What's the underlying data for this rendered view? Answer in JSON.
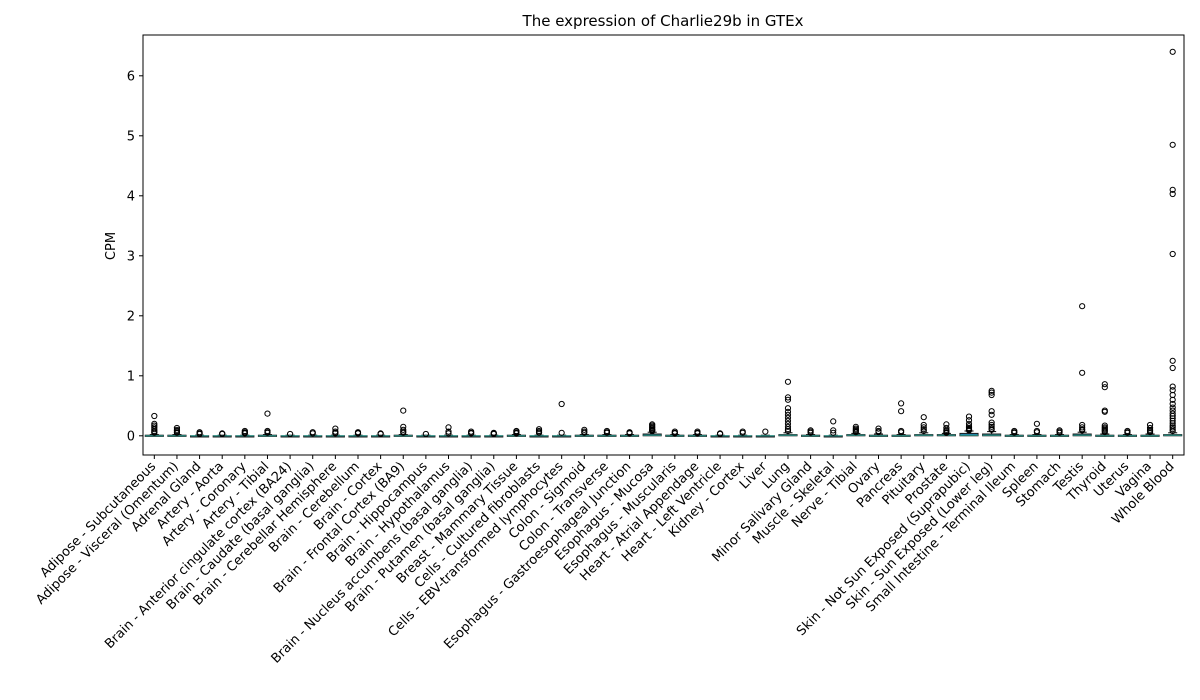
{
  "chart_data": {
    "type": "box",
    "title": "The expression of Charlie29b in GTEx",
    "xlabel": "",
    "ylabel": "CPM",
    "ylim": [
      -0.32,
      6.68
    ],
    "yticks": [
      0,
      1,
      2,
      3,
      4,
      5,
      6
    ],
    "grid": false,
    "legend": "none",
    "box_color": "#1f77b4",
    "median_color": "#2a9d8f",
    "categories": [
      "Adipose - Subcutaneous",
      "Adipose - Visceral (Omentum)",
      "Adrenal Gland",
      "Artery - Aorta",
      "Artery - Coronary",
      "Artery - Tibial",
      "Brain - Anterior cingulate cortex (BA24)",
      "Brain - Caudate (basal ganglia)",
      "Brain - Cerebellar Hemisphere",
      "Brain - Cerebellum",
      "Brain - Cortex",
      "Brain - Frontal Cortex (BA9)",
      "Brain - Hippocampus",
      "Brain - Hypothalamus",
      "Brain - Nucleus accumbens (basal ganglia)",
      "Brain - Putamen (basal ganglia)",
      "Breast - Mammary Tissue",
      "Cells - Cultured fibroblasts",
      "Cells - EBV-transformed lymphocytes",
      "Colon - Sigmoid",
      "Colon - Transverse",
      "Esophagus - Gastroesophageal Junction",
      "Esophagus - Mucosa",
      "Esophagus - Muscularis",
      "Heart - Atrial Appendage",
      "Heart - Left Ventricle",
      "Kidney - Cortex",
      "Liver",
      "Lung",
      "Minor Salivary Gland",
      "Muscle - Skeletal",
      "Nerve - Tibial",
      "Ovary",
      "Pancreas",
      "Pituitary",
      "Prostate",
      "Skin - Not Sun Exposed (Suprapubic)",
      "Skin - Sun Exposed (Lower leg)",
      "Small Intestine - Terminal Ileum",
      "Spleen",
      "Stomach",
      "Testis",
      "Thyroid",
      "Uterus",
      "Vagina",
      "Whole Blood"
    ],
    "boxes": [
      {
        "q1": 0,
        "median": 0,
        "q3": 0.01,
        "whislo": 0,
        "whishi": 0.02
      },
      {
        "q1": 0,
        "median": 0,
        "q3": 0.01,
        "whislo": 0,
        "whishi": 0.02
      },
      {
        "q1": 0,
        "median": 0,
        "q3": 0,
        "whislo": 0,
        "whishi": 0.01
      },
      {
        "q1": 0,
        "median": 0,
        "q3": 0,
        "whislo": 0,
        "whishi": 0.01
      },
      {
        "q1": 0,
        "median": 0,
        "q3": 0,
        "whislo": 0,
        "whishi": 0.01
      },
      {
        "q1": 0,
        "median": 0,
        "q3": 0.01,
        "whislo": 0,
        "whishi": 0.02
      },
      {
        "q1": 0,
        "median": 0,
        "q3": 0,
        "whislo": 0,
        "whishi": 0.01
      },
      {
        "q1": 0,
        "median": 0,
        "q3": 0,
        "whislo": 0,
        "whishi": 0.01
      },
      {
        "q1": 0,
        "median": 0,
        "q3": 0,
        "whislo": 0,
        "whishi": 0.01
      },
      {
        "q1": 0,
        "median": 0,
        "q3": 0,
        "whislo": 0,
        "whishi": 0.01
      },
      {
        "q1": 0,
        "median": 0,
        "q3": 0,
        "whislo": 0,
        "whishi": 0.01
      },
      {
        "q1": 0,
        "median": 0,
        "q3": 0.01,
        "whislo": 0,
        "whishi": 0.02
      },
      {
        "q1": 0,
        "median": 0,
        "q3": 0,
        "whislo": 0,
        "whishi": 0.01
      },
      {
        "q1": 0,
        "median": 0,
        "q3": 0,
        "whislo": 0,
        "whishi": 0.01
      },
      {
        "q1": 0,
        "median": 0,
        "q3": 0,
        "whislo": 0,
        "whishi": 0.01
      },
      {
        "q1": 0,
        "median": 0,
        "q3": 0,
        "whislo": 0,
        "whishi": 0.01
      },
      {
        "q1": 0,
        "median": 0,
        "q3": 0.01,
        "whislo": 0,
        "whishi": 0.02
      },
      {
        "q1": 0,
        "median": 0,
        "q3": 0,
        "whislo": 0,
        "whishi": 0.01
      },
      {
        "q1": 0,
        "median": 0,
        "q3": 0,
        "whislo": 0,
        "whishi": 0.01
      },
      {
        "q1": 0,
        "median": 0,
        "q3": 0.01,
        "whislo": 0,
        "whishi": 0.02
      },
      {
        "q1": 0,
        "median": 0,
        "q3": 0.01,
        "whislo": 0,
        "whishi": 0.02
      },
      {
        "q1": 0,
        "median": 0,
        "q3": 0.01,
        "whislo": 0,
        "whishi": 0.02
      },
      {
        "q1": 0,
        "median": 0.01,
        "q3": 0.03,
        "whislo": 0,
        "whishi": 0.06
      },
      {
        "q1": 0,
        "median": 0,
        "q3": 0.01,
        "whislo": 0,
        "whishi": 0.02
      },
      {
        "q1": 0,
        "median": 0,
        "q3": 0.01,
        "whislo": 0,
        "whishi": 0.02
      },
      {
        "q1": 0,
        "median": 0,
        "q3": 0,
        "whislo": 0,
        "whishi": 0.01
      },
      {
        "q1": 0,
        "median": 0,
        "q3": 0,
        "whislo": 0,
        "whishi": 0.01
      },
      {
        "q1": 0,
        "median": 0,
        "q3": 0,
        "whislo": 0,
        "whishi": 0.01
      },
      {
        "q1": 0,
        "median": 0.01,
        "q3": 0.02,
        "whislo": 0,
        "whishi": 0.05
      },
      {
        "q1": 0,
        "median": 0,
        "q3": 0.01,
        "whislo": 0,
        "whishi": 0.02
      },
      {
        "q1": 0,
        "median": 0,
        "q3": 0,
        "whislo": 0,
        "whishi": 0.01
      },
      {
        "q1": 0,
        "median": 0.01,
        "q3": 0.02,
        "whislo": 0,
        "whishi": 0.04
      },
      {
        "q1": 0,
        "median": 0,
        "q3": 0.01,
        "whislo": 0,
        "whishi": 0.03
      },
      {
        "q1": 0,
        "median": 0,
        "q3": 0.01,
        "whislo": 0,
        "whishi": 0.02
      },
      {
        "q1": 0,
        "median": 0.01,
        "q3": 0.02,
        "whislo": 0,
        "whishi": 0.05
      },
      {
        "q1": 0,
        "median": 0.01,
        "q3": 0.02,
        "whislo": 0,
        "whishi": 0.04
      },
      {
        "q1": 0,
        "median": 0.01,
        "q3": 0.04,
        "whislo": 0,
        "whishi": 0.08
      },
      {
        "q1": 0,
        "median": 0.01,
        "q3": 0.03,
        "whislo": 0,
        "whishi": 0.07
      },
      {
        "q1": 0,
        "median": 0,
        "q3": 0.01,
        "whislo": 0,
        "whishi": 0.02
      },
      {
        "q1": 0,
        "median": 0,
        "q3": 0.01,
        "whislo": 0,
        "whishi": 0.02
      },
      {
        "q1": 0,
        "median": 0,
        "q3": 0.01,
        "whislo": 0,
        "whishi": 0.02
      },
      {
        "q1": 0,
        "median": 0.01,
        "q3": 0.03,
        "whislo": 0,
        "whishi": 0.06
      },
      {
        "q1": 0,
        "median": 0,
        "q3": 0.01,
        "whislo": 0,
        "whishi": 0.03
      },
      {
        "q1": 0,
        "median": 0,
        "q3": 0.01,
        "whislo": 0,
        "whishi": 0.02
      },
      {
        "q1": 0,
        "median": 0,
        "q3": 0.01,
        "whislo": 0,
        "whishi": 0.03
      },
      {
        "q1": 0,
        "median": 0.01,
        "q3": 0.02,
        "whislo": 0,
        "whishi": 0.05
      }
    ],
    "outliers": [
      [
        0.33,
        0.2,
        0.17,
        0.14,
        0.11,
        0.08,
        0.06,
        0.05
      ],
      [
        0.13,
        0.1,
        0.08,
        0.06,
        0.05
      ],
      [
        0.06,
        0.04,
        0.03
      ],
      [
        0.04,
        0.03
      ],
      [
        0.08,
        0.06,
        0.05,
        0.04
      ],
      [
        0.37,
        0.08,
        0.06,
        0.05
      ],
      [
        0.03
      ],
      [
        0.06,
        0.04
      ],
      [
        0.12,
        0.07,
        0.05,
        0.04
      ],
      [
        0.06,
        0.05,
        0.04
      ],
      [
        0.04,
        0.03
      ],
      [
        0.42,
        0.15,
        0.1,
        0.07,
        0.05
      ],
      [
        0.03
      ],
      [
        0.14,
        0.07,
        0.04
      ],
      [
        0.07,
        0.05,
        0.04
      ],
      [
        0.05,
        0.04,
        0.03
      ],
      [
        0.08,
        0.07,
        0.05,
        0.04
      ],
      [
        0.11,
        0.08,
        0.06,
        0.05
      ],
      [
        0.53,
        0.05
      ],
      [
        0.1,
        0.07,
        0.05
      ],
      [
        0.08,
        0.06,
        0.05
      ],
      [
        0.06,
        0.05,
        0.04
      ],
      [
        0.19,
        0.17,
        0.15,
        0.13,
        0.11,
        0.1,
        0.09,
        0.08
      ],
      [
        0.07,
        0.05,
        0.04
      ],
      [
        0.07,
        0.05,
        0.04
      ],
      [
        0.04,
        0.03
      ],
      [
        0.07,
        0.05
      ],
      [
        0.07
      ],
      [
        0.9,
        0.64,
        0.6,
        0.46,
        0.4,
        0.35,
        0.3,
        0.25,
        0.2,
        0.15,
        0.11,
        0.08
      ],
      [
        0.09,
        0.07,
        0.05
      ],
      [
        0.24,
        0.09,
        0.05
      ],
      [
        0.15,
        0.12,
        0.1,
        0.08,
        0.06
      ],
      [
        0.12,
        0.08,
        0.06
      ],
      [
        0.54,
        0.41,
        0.08,
        0.06
      ],
      [
        0.31,
        0.18,
        0.14,
        0.11,
        0.08
      ],
      [
        0.19,
        0.13,
        0.1,
        0.08,
        0.06,
        0.05
      ],
      [
        0.32,
        0.26,
        0.2,
        0.16,
        0.13,
        0.11,
        0.1,
        0.09
      ],
      [
        0.75,
        0.72,
        0.68,
        0.41,
        0.35,
        0.22,
        0.18,
        0.15,
        0.12,
        0.1
      ],
      [
        0.08,
        0.06,
        0.05
      ],
      [
        0.2,
        0.08,
        0.06
      ],
      [
        0.09,
        0.07,
        0.05
      ],
      [
        2.16,
        1.05,
        0.18,
        0.14,
        0.11,
        0.09
      ],
      [
        0.86,
        0.81,
        0.42,
        0.4,
        0.17,
        0.14,
        0.12,
        0.1,
        0.08,
        0.06
      ],
      [
        0.08,
        0.06,
        0.05
      ],
      [
        0.18,
        0.13,
        0.1,
        0.08,
        0.06
      ],
      [
        6.4,
        4.85,
        4.1,
        4.03,
        3.03,
        1.25,
        1.13,
        0.82,
        0.76,
        0.68,
        0.6,
        0.53,
        0.47,
        0.42,
        0.37,
        0.33,
        0.29,
        0.25,
        0.21,
        0.17,
        0.14,
        0.11,
        0.08
      ]
    ]
  }
}
